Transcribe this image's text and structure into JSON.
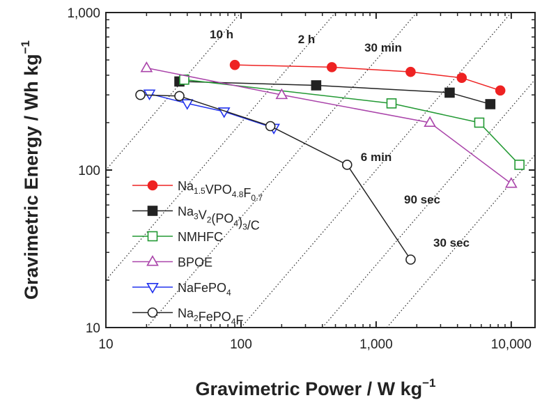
{
  "chart_data": {
    "type": "scatter",
    "xlabel": "Gravimetric Power / W kg",
    "xlabel_sup": "−1",
    "ylabel": "Gravimetric Energy / Wh kg",
    "ylabel_sup": "−1",
    "xscale": "log",
    "yscale": "log",
    "xlim": [
      10,
      15000
    ],
    "ylim": [
      10,
      1000
    ],
    "x_ticks": [
      {
        "value": 10,
        "label": "10"
      },
      {
        "value": 100,
        "label": "100"
      },
      {
        "value": 1000,
        "label": "1,000"
      },
      {
        "value": 10000,
        "label": "10,000"
      }
    ],
    "y_ticks": [
      {
        "value": 10,
        "label": "10"
      },
      {
        "value": 100,
        "label": "100"
      },
      {
        "value": 1000,
        "label": "1,000"
      }
    ],
    "grid": false,
    "legend_position": "left",
    "time_lines": [
      {
        "hours": 10,
        "label": "10 h"
      },
      {
        "hours": 2,
        "label": "2 h"
      },
      {
        "hours": 0.5,
        "label": "30 min"
      },
      {
        "hours": 0.1,
        "label": "6 min"
      },
      {
        "hours": 0.025,
        "label": "90 sec"
      },
      {
        "hours": 0.008333,
        "label": "30 sec"
      }
    ],
    "series": [
      {
        "name_parts": [
          [
            "Na",
            ""
          ],
          [
            "1.5",
            "sub"
          ],
          [
            "VPO",
            ""
          ],
          [
            "4.8",
            "sub"
          ],
          [
            "F",
            ""
          ],
          [
            "0.7",
            "sub"
          ]
        ],
        "marker": "circle",
        "filled": true,
        "color": "#ee2222",
        "x": [
          90,
          470,
          1800,
          4300,
          8300
        ],
        "y": [
          465,
          450,
          420,
          385,
          320
        ]
      },
      {
        "name_parts": [
          [
            "Na",
            ""
          ],
          [
            "3",
            "sub"
          ],
          [
            "V",
            ""
          ],
          [
            "2",
            "sub"
          ],
          [
            "(PO",
            ""
          ],
          [
            "4",
            "sub"
          ],
          [
            ")",
            ""
          ],
          [
            "3",
            "sub"
          ],
          [
            "/C",
            ""
          ]
        ],
        "marker": "square",
        "filled": true,
        "color": "#222222",
        "x": [
          35,
          360,
          3500,
          7000
        ],
        "y": [
          365,
          345,
          310,
          262
        ]
      },
      {
        "name_parts": [
          [
            "NMHFC",
            ""
          ]
        ],
        "marker": "square",
        "filled": false,
        "color": "#229933",
        "x": [
          38,
          1300,
          5800,
          11500
        ],
        "y": [
          375,
          265,
          200,
          108
        ]
      },
      {
        "name_parts": [
          [
            "BPOE",
            ""
          ]
        ],
        "marker": "triangle-up",
        "filled": false,
        "color": "#aa44aa",
        "x": [
          20,
          200,
          2500,
          10000
        ],
        "y": [
          445,
          300,
          200,
          82
        ]
      },
      {
        "name_parts": [
          [
            "NaFePO",
            ""
          ],
          [
            "4",
            "sub"
          ]
        ],
        "marker": "triangle-down",
        "filled": false,
        "color": "#2233ee",
        "x": [
          21,
          40,
          75,
          175
        ],
        "y": [
          305,
          265,
          235,
          185
        ]
      },
      {
        "name_parts": [
          [
            "Na",
            ""
          ],
          [
            "2",
            "sub"
          ],
          [
            "FePO",
            ""
          ],
          [
            "4",
            "sub"
          ],
          [
            "F",
            ""
          ]
        ],
        "marker": "circle",
        "filled": false,
        "color": "#222222",
        "x": [
          18,
          35,
          165,
          610,
          1800
        ],
        "y": [
          300,
          295,
          190,
          108,
          27
        ]
      }
    ]
  }
}
